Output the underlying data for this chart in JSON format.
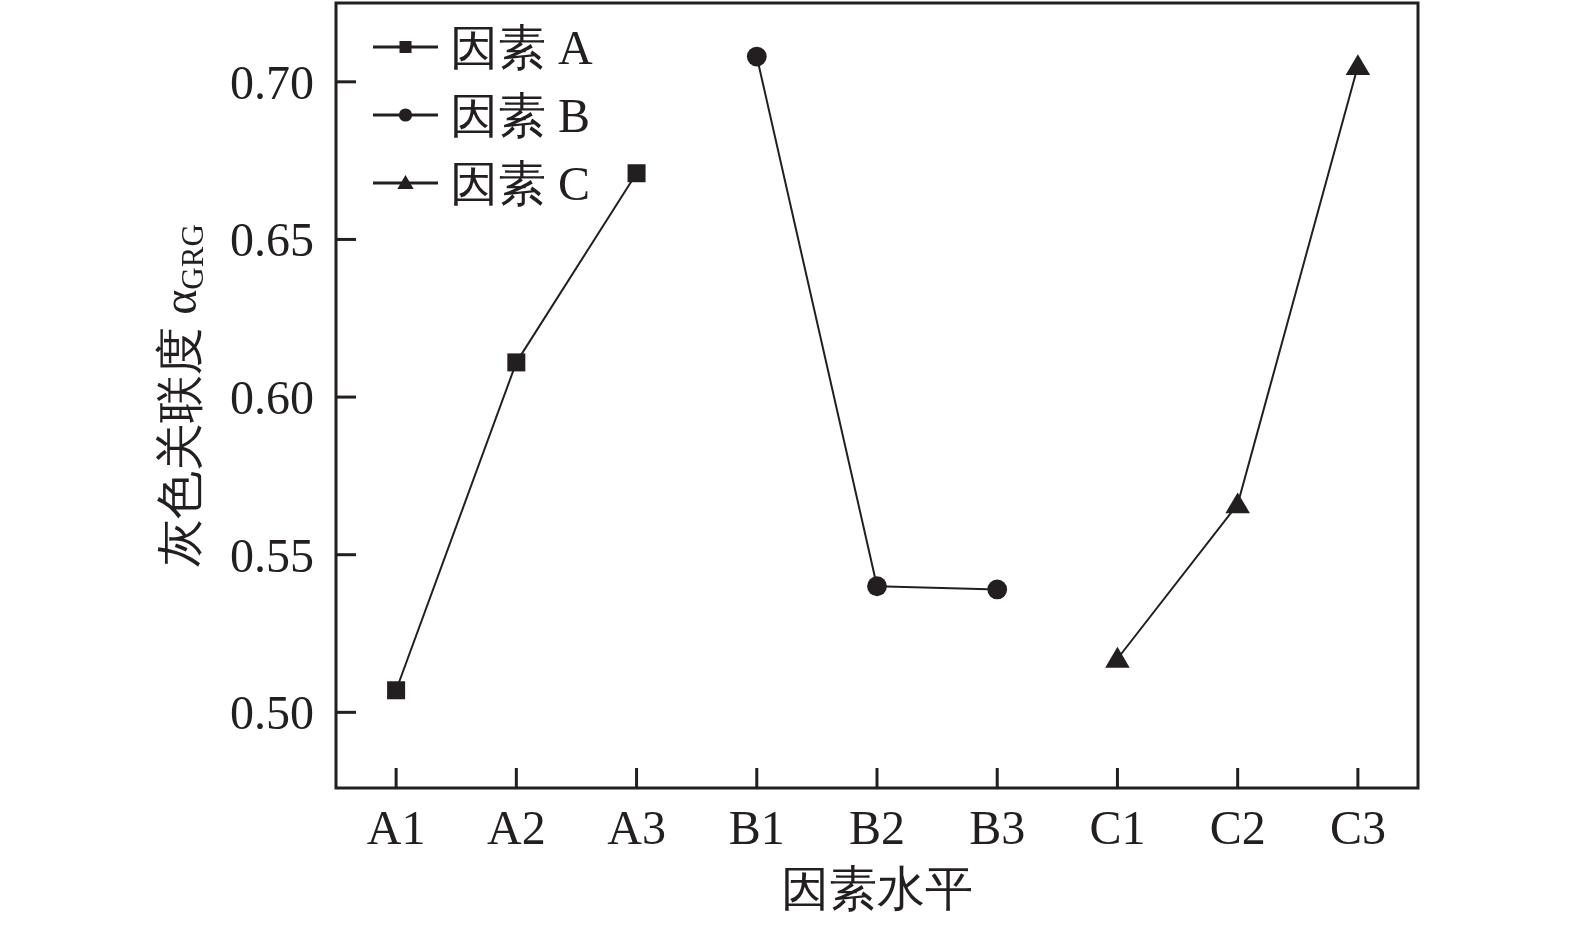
{
  "chart_data": {
    "type": "line",
    "xlabel": "因素水平",
    "ylabel": "灰色关联度 α$_{GRG}$",
    "categories": [
      "A1",
      "A2",
      "A3",
      "B1",
      "B2",
      "B3",
      "C1",
      "C2",
      "C3"
    ],
    "series": [
      {
        "name": "因素 A",
        "color": "#231f20",
        "marker": "square",
        "values": [
          0.507,
          0.611,
          0.671,
          null,
          null,
          null,
          null,
          null,
          null
        ]
      },
      {
        "name": "因素 B",
        "color": "#231f20",
        "marker": "circle",
        "values": [
          null,
          null,
          null,
          0.708,
          0.54,
          0.539,
          null,
          null,
          null
        ]
      },
      {
        "name": "因素 C",
        "color": "#231f20",
        "marker": "triangle",
        "values": [
          null,
          null,
          null,
          null,
          null,
          null,
          0.517,
          0.566,
          0.705
        ]
      }
    ],
    "ylim": [
      0.476,
      0.725
    ],
    "yticks": [
      {
        "value": 0.5,
        "label": "0.50"
      },
      {
        "value": 0.55,
        "label": "0.55"
      },
      {
        "value": 0.6,
        "label": "0.60"
      },
      {
        "value": 0.65,
        "label": "0.65"
      },
      {
        "value": 0.7,
        "label": "0.70"
      }
    ],
    "legend": "top left"
  }
}
